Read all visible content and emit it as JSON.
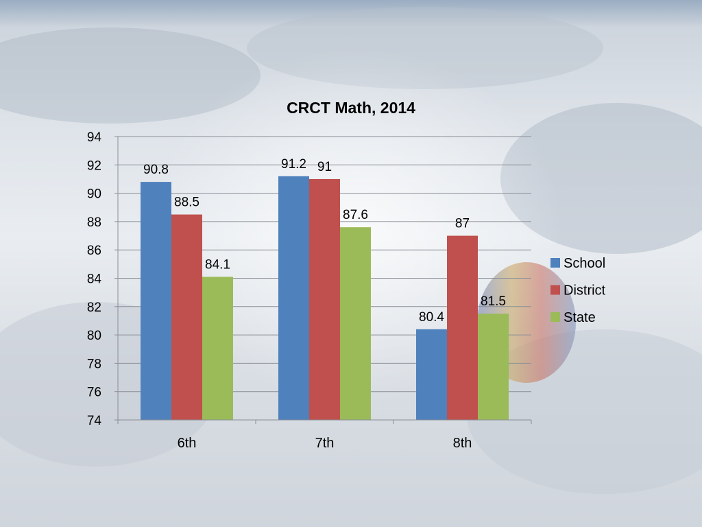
{
  "chart_data": {
    "type": "bar",
    "title": "CRCT Math, 2014",
    "categories": [
      "6th",
      "7th",
      "8th"
    ],
    "series": [
      {
        "name": "School",
        "color": "#4F81BD",
        "values": [
          90.8,
          91.2,
          80.4
        ],
        "labels": [
          "90.8",
          "91.2",
          "80.4"
        ]
      },
      {
        "name": "District",
        "color": "#C0504D",
        "values": [
          88.5,
          91,
          87
        ],
        "labels": [
          "88.5",
          "91",
          "87"
        ]
      },
      {
        "name": "State",
        "color": "#9BBB59",
        "values": [
          84.1,
          87.6,
          81.5
        ],
        "labels": [
          "84.1",
          "87.6",
          "81.5"
        ]
      }
    ],
    "ylim": [
      74,
      94
    ],
    "yticks": [
      74,
      76,
      78,
      80,
      82,
      84,
      86,
      88,
      90,
      92,
      94
    ],
    "ytick_labels": [
      "74",
      "76",
      "78",
      "80",
      "82",
      "84",
      "86",
      "88",
      "90",
      "92",
      "94"
    ],
    "xlabel": "",
    "ylabel": "",
    "grid": true,
    "legend": "right"
  }
}
